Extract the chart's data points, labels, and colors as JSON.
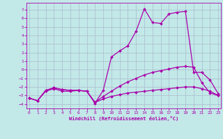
{
  "xlabel": "Windchill (Refroidissement éolien,°C)",
  "bg_color": "#c2e8e8",
  "line_color": "#aa00aa",
  "grid_color": "#aabbcc",
  "xlim": [
    -0.3,
    23.3
  ],
  "ylim": [
    -4.5,
    7.8
  ],
  "xticks": [
    0,
    1,
    2,
    3,
    4,
    5,
    6,
    7,
    8,
    9,
    10,
    11,
    12,
    13,
    14,
    15,
    16,
    17,
    18,
    19,
    20,
    21,
    22,
    23
  ],
  "yticks": [
    -4,
    -3,
    -2,
    -1,
    0,
    1,
    2,
    3,
    4,
    5,
    6,
    7
  ],
  "series": [
    {
      "x": [
        0,
        1,
        2,
        3,
        4,
        5,
        6,
        7,
        8,
        9,
        10,
        11,
        12,
        13,
        14,
        15,
        16,
        17,
        18,
        19,
        20,
        21,
        22,
        23
      ],
      "y": [
        -3.3,
        -3.6,
        -2.5,
        -2.2,
        -2.5,
        -2.5,
        -2.4,
        -2.5,
        -3.9,
        -2.4,
        1.5,
        2.2,
        2.8,
        4.5,
        7.1,
        5.5,
        5.4,
        6.5,
        6.7,
        6.8,
        -0.3,
        -0.3,
        -1.2,
        -2.8
      ]
    },
    {
      "x": [
        0,
        1,
        2,
        3,
        4,
        5,
        6,
        7,
        8,
        9,
        10,
        11,
        12,
        13,
        14,
        15,
        16,
        17,
        18,
        19,
        20,
        21,
        22,
        23
      ],
      "y": [
        -3.3,
        -3.6,
        -2.4,
        -2.1,
        -2.3,
        -2.4,
        -2.4,
        -2.5,
        -3.8,
        -3.1,
        -2.5,
        -1.9,
        -1.4,
        -1.0,
        -0.6,
        -0.3,
        -0.1,
        0.1,
        0.3,
        0.4,
        0.3,
        -1.5,
        -2.7,
        -3.0
      ]
    },
    {
      "x": [
        0,
        1,
        2,
        3,
        4,
        5,
        6,
        7,
        8,
        9,
        10,
        11,
        12,
        13,
        14,
        15,
        16,
        17,
        18,
        19,
        20,
        21,
        22,
        23
      ],
      "y": [
        -3.3,
        -3.6,
        -2.4,
        -2.1,
        -2.3,
        -2.4,
        -2.4,
        -2.5,
        -3.8,
        -3.4,
        -3.1,
        -2.9,
        -2.7,
        -2.6,
        -2.5,
        -2.4,
        -2.3,
        -2.2,
        -2.1,
        -2.0,
        -2.0,
        -2.2,
        -2.5,
        -3.0
      ]
    }
  ]
}
